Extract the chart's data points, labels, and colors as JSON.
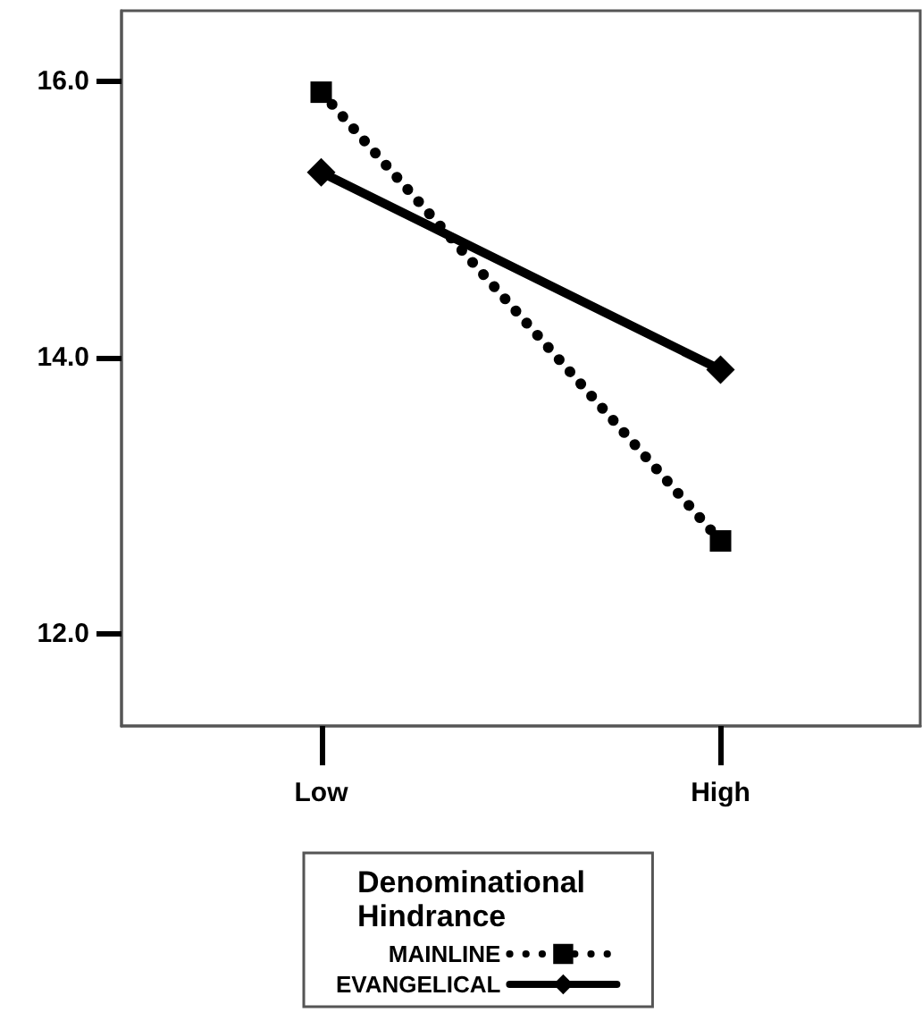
{
  "chart_data": {
    "type": "line",
    "categories": [
      "Low",
      "High"
    ],
    "series": [
      {
        "name": "MAINLINE",
        "color": "#000000",
        "values": [
          15.92,
          12.67
        ],
        "marker": "square",
        "line_style": "dotted"
      },
      {
        "name": "EVANGELICAL",
        "color": "#000000",
        "values": [
          15.34,
          13.91
        ],
        "marker": "diamond",
        "line_style": "solid"
      }
    ],
    "ylim": [
      11.33,
      16.51
    ],
    "yticks": [
      {
        "value": 12,
        "label": "12.0"
      },
      {
        "value": 14,
        "label": "14.0"
      },
      {
        "value": 16,
        "label": "16.0"
      }
    ],
    "grid": false,
    "legend": "bottom",
    "legend_title": "Denominational Hindrance"
  }
}
